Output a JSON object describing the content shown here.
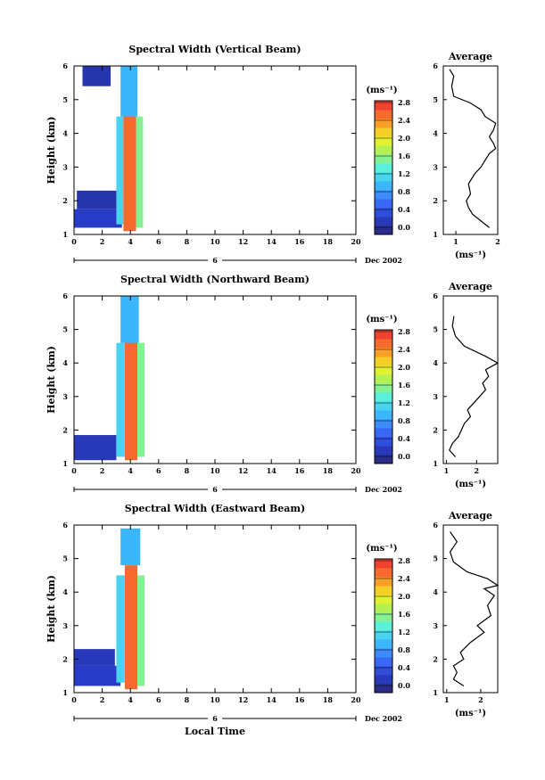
{
  "chart_data": [
    {
      "type": "heatmap",
      "title": "Spectral Width (Vertical Beam)",
      "ylabel": "Height (km)",
      "xlim": [
        0,
        20
      ],
      "ylim": [
        1,
        6
      ],
      "x_ticks": [
        "0",
        "2",
        "4",
        "6",
        "8",
        "10",
        "12",
        "14",
        "16",
        "18",
        "20"
      ],
      "y_ticks": [
        "1",
        "2",
        "3",
        "4",
        "5",
        "6"
      ],
      "date_label": "6",
      "month_label": "Dec 2002",
      "colorbar": {
        "unit": "(ms⁻¹)",
        "ticks": [
          "0.0",
          "0.4",
          "0.8",
          "1.2",
          "1.6",
          "2.0",
          "2.4",
          "2.8"
        ],
        "range": [
          0,
          3.0
        ]
      },
      "heat_regions": [
        {
          "x": [
            0.0,
            3.4
          ],
          "y": [
            1.2,
            1.75
          ],
          "value": 0.35
        },
        {
          "x": [
            0.2,
            3.1
          ],
          "y": [
            1.75,
            2.3
          ],
          "value": 0.25
        },
        {
          "x": [
            3.0,
            3.5
          ],
          "y": [
            1.3,
            4.5
          ],
          "value": 1.3
        },
        {
          "x": [
            3.5,
            4.4
          ],
          "y": [
            1.1,
            4.7
          ],
          "value": 2.7
        },
        {
          "x": [
            4.4,
            4.9
          ],
          "y": [
            1.2,
            4.5
          ],
          "value": 1.7
        },
        {
          "x": [
            3.3,
            4.5
          ],
          "y": [
            4.5,
            6.0
          ],
          "value": 1.1
        },
        {
          "x": [
            0.6,
            2.6
          ],
          "y": [
            5.4,
            6.0
          ],
          "value": 0.25
        }
      ],
      "average_profile": {
        "title": "Average",
        "xlabel": "(ms⁻¹)",
        "xlim": [
          0.7,
          2.0
        ],
        "x_ticks": [
          "1",
          "2"
        ],
        "x": [
          1.8,
          1.6,
          1.4,
          1.3,
          1.25,
          1.35,
          1.3,
          1.45,
          1.6,
          1.7,
          1.8,
          1.95,
          1.9,
          1.8,
          1.9,
          1.95,
          1.7,
          1.6,
          1.35,
          0.95,
          0.9,
          0.95,
          0.85
        ],
        "y": [
          1.2,
          1.4,
          1.6,
          1.8,
          2.0,
          2.2,
          2.5,
          2.8,
          3.0,
          3.2,
          3.4,
          3.55,
          3.7,
          3.9,
          4.1,
          4.3,
          4.5,
          4.7,
          4.9,
          5.1,
          5.4,
          5.7,
          5.9
        ]
      }
    },
    {
      "type": "heatmap",
      "title": "Spectral Width (Northward Beam)",
      "ylabel": "Height (km)",
      "xlim": [
        0,
        20
      ],
      "ylim": [
        1,
        6
      ],
      "x_ticks": [
        "0",
        "2",
        "4",
        "6",
        "8",
        "10",
        "12",
        "14",
        "16",
        "18",
        "20"
      ],
      "y_ticks": [
        "1",
        "2",
        "3",
        "4",
        "5",
        "6"
      ],
      "date_label": "6",
      "month_label": "Dec 2002",
      "colorbar": {
        "unit": "(ms⁻¹)",
        "ticks": [
          "0.0",
          "0.4",
          "0.8",
          "1.2",
          "1.6",
          "2.0",
          "2.4",
          "2.8"
        ],
        "range": [
          0,
          3.0
        ]
      },
      "heat_regions": [
        {
          "x": [
            0.0,
            3.0
          ],
          "y": [
            1.1,
            1.85
          ],
          "value": 0.3
        },
        {
          "x": [
            3.0,
            3.6
          ],
          "y": [
            1.2,
            4.6
          ],
          "value": 1.3
        },
        {
          "x": [
            3.6,
            4.5
          ],
          "y": [
            1.1,
            4.7
          ],
          "value": 2.7
        },
        {
          "x": [
            4.5,
            5.0
          ],
          "y": [
            1.2,
            4.6
          ],
          "value": 1.7
        },
        {
          "x": [
            3.3,
            4.6
          ],
          "y": [
            4.6,
            6.0
          ],
          "value": 1.1
        }
      ],
      "average_profile": {
        "title": "Average",
        "xlabel": "(ms⁻¹)",
        "xlim": [
          0.9,
          2.7
        ],
        "x_ticks": [
          "1",
          "2"
        ],
        "x": [
          1.3,
          1.1,
          1.2,
          1.4,
          1.5,
          1.6,
          1.8,
          1.7,
          1.9,
          2.1,
          2.3,
          2.2,
          2.4,
          2.3,
          2.7,
          2.3,
          1.6,
          1.3,
          1.2,
          1.25
        ],
        "y": [
          1.2,
          1.4,
          1.6,
          1.8,
          2.0,
          2.2,
          2.4,
          2.6,
          2.8,
          3.0,
          3.2,
          3.4,
          3.6,
          3.8,
          4.0,
          4.2,
          4.5,
          4.8,
          5.1,
          5.4
        ]
      }
    },
    {
      "type": "heatmap",
      "title": "Spectral Width (Eastward Beam)",
      "ylabel": "Height (km)",
      "xlabel": "Local Time",
      "xlim": [
        0,
        20
      ],
      "ylim": [
        1,
        6
      ],
      "x_ticks": [
        "0",
        "2",
        "4",
        "6",
        "8",
        "10",
        "12",
        "14",
        "16",
        "18",
        "20"
      ],
      "y_ticks": [
        "1",
        "2",
        "3",
        "4",
        "5",
        "6"
      ],
      "date_label": "6",
      "month_label": "Dec 2002",
      "colorbar": {
        "unit": "(ms⁻¹)",
        "ticks": [
          "0.0",
          "0.4",
          "0.8",
          "1.2",
          "1.6",
          "2.0",
          "2.4",
          "2.8"
        ],
        "range": [
          0,
          3.0
        ]
      },
      "heat_regions": [
        {
          "x": [
            0.0,
            3.3
          ],
          "y": [
            1.2,
            1.8
          ],
          "value": 0.35
        },
        {
          "x": [
            0.0,
            2.9
          ],
          "y": [
            1.8,
            2.3
          ],
          "value": 0.3
        },
        {
          "x": [
            3.0,
            3.6
          ],
          "y": [
            1.3,
            4.5
          ],
          "value": 1.3
        },
        {
          "x": [
            3.6,
            4.5
          ],
          "y": [
            1.1,
            4.8
          ],
          "value": 2.7
        },
        {
          "x": [
            4.5,
            5.0
          ],
          "y": [
            1.2,
            4.5
          ],
          "value": 1.7
        },
        {
          "x": [
            3.3,
            4.7
          ],
          "y": [
            4.8,
            5.9
          ],
          "value": 1.1
        }
      ],
      "average_profile": {
        "title": "Average",
        "xlabel": "(ms⁻¹)",
        "xlim": [
          0.9,
          2.5
        ],
        "x_ticks": [
          "1",
          "2"
        ],
        "x": [
          1.5,
          1.2,
          1.3,
          1.2,
          1.5,
          1.4,
          1.7,
          2.1,
          1.9,
          2.3,
          2.2,
          2.4,
          2.1,
          2.5,
          2.2,
          1.6,
          1.2,
          1.1,
          1.3,
          1.1
        ],
        "y": [
          1.2,
          1.4,
          1.6,
          1.8,
          2.0,
          2.2,
          2.5,
          2.8,
          3.0,
          3.3,
          3.6,
          3.9,
          4.1,
          4.2,
          4.4,
          4.6,
          4.9,
          5.2,
          5.5,
          5.8
        ]
      }
    }
  ]
}
